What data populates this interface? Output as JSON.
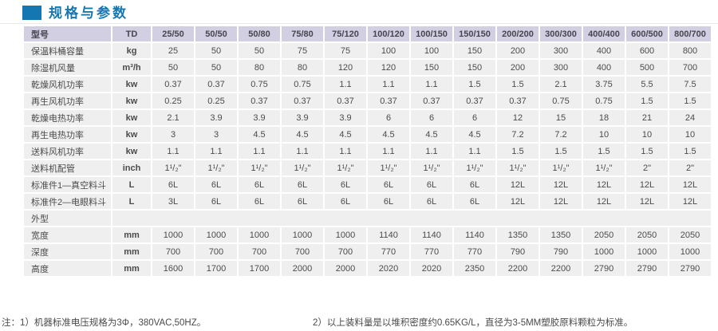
{
  "colors": {
    "accent": "#1577b2",
    "header_bg": "#d3cfe2",
    "cell_bg": "#efefef"
  },
  "header": {
    "title": "规格与参数"
  },
  "table": {
    "columns": [
      "型号",
      "TD",
      "25/50",
      "50/50",
      "50/80",
      "75/80",
      "75/120",
      "100/120",
      "100/150",
      "150/150",
      "200/200",
      "300/300",
      "400/400",
      "600/500",
      "800/700"
    ],
    "rows": [
      {
        "type": "data",
        "label": "保温料桶容量",
        "unit": "kg",
        "values": [
          "25",
          "50",
          "50",
          "75",
          "75",
          "100",
          "100",
          "150",
          "200",
          "300",
          "400",
          "600",
          "800"
        ]
      },
      {
        "type": "data",
        "label": "除湿机风量",
        "unit": "m³/h",
        "values": [
          "50",
          "50",
          "80",
          "80",
          "120",
          "120",
          "150",
          "150",
          "200",
          "300",
          "400",
          "500",
          "700"
        ]
      },
      {
        "type": "data",
        "label": "乾燥风机功率",
        "unit": "kw",
        "values": [
          "0.37",
          "0.37",
          "0.75",
          "0.75",
          "1.1",
          "1.1",
          "1.1",
          "1.5",
          "1.5",
          "2.1",
          "3.75",
          "5.5",
          "7.5"
        ]
      },
      {
        "type": "data",
        "label": "再生风机功率",
        "unit": "kw",
        "values": [
          "0.25",
          "0.25",
          "0.37",
          "0.37",
          "0.37",
          "0.37",
          "0.37",
          "0.37",
          "0.37",
          "0.75",
          "0.75",
          "1.5",
          "1.5"
        ]
      },
      {
        "type": "data",
        "label": "乾燥电热功率",
        "unit": "kw",
        "values": [
          "2.1",
          "3.9",
          "3.9",
          "3.9",
          "3.9",
          "6",
          "6",
          "6",
          "12",
          "15",
          "18",
          "21",
          "24"
        ]
      },
      {
        "type": "data",
        "label": "再生电热功率",
        "unit": "kw",
        "values": [
          "3",
          "3",
          "4.5",
          "4.5",
          "4.5",
          "4.5",
          "4.5",
          "4.5",
          "7.2",
          "7.2",
          "10",
          "10",
          "10"
        ]
      },
      {
        "type": "data",
        "label": "送料风机功率",
        "unit": "kw",
        "values": [
          "1.1",
          "1.1",
          "1.1",
          "1.1",
          "1.1",
          "1.1",
          "1.1",
          "1.1",
          "1.5",
          "1.5",
          "1.5",
          "1.5",
          "1.5"
        ]
      },
      {
        "type": "data",
        "label": "送料机配管",
        "unit": "inch",
        "values": [
          "1¹/₂\"",
          "1¹/₂\"",
          "1¹/₂\"",
          "1¹/₂\"",
          "1¹/₂\"",
          "1¹/₂\"",
          "1¹/₂\"",
          "1¹/₂\"",
          "1¹/₂\"",
          "1¹/₂\"",
          "1¹/₂\"",
          "2\"",
          "2\""
        ]
      },
      {
        "type": "data",
        "label": "标准件1—真空料斗",
        "unit": "L",
        "values": [
          "6L",
          "6L",
          "6L",
          "6L",
          "6L",
          "6L",
          "6L",
          "6L",
          "12L",
          "12L",
          "12L",
          "12L",
          "12L"
        ]
      },
      {
        "type": "data",
        "label": "标准件2—电眼料斗",
        "unit": "L",
        "values": [
          "3L",
          "6L",
          "6L",
          "6L",
          "6L",
          "6L",
          "6L",
          "6L",
          "12L",
          "12L",
          "12L",
          "12L",
          "12L"
        ]
      },
      {
        "type": "section",
        "label": "外型",
        "unit": "",
        "values": []
      },
      {
        "type": "data",
        "label": "宽度",
        "unit": "mm",
        "values": [
          "1000",
          "1000",
          "1000",
          "1000",
          "1000",
          "1140",
          "1140",
          "1140",
          "1350",
          "1350",
          "2050",
          "2050",
          "2050"
        ]
      },
      {
        "type": "data",
        "label": "深度",
        "unit": "mm",
        "values": [
          "700",
          "700",
          "700",
          "700",
          "700",
          "770",
          "770",
          "770",
          "790",
          "790",
          "1000",
          "1000",
          "1000"
        ]
      },
      {
        "type": "data",
        "label": "高度",
        "unit": "mm",
        "values": [
          "1600",
          "1700",
          "1700",
          "2000",
          "2000",
          "2020",
          "2020",
          "2350",
          "2200",
          "2200",
          "2790",
          "2790",
          "2790"
        ]
      }
    ]
  },
  "notes": {
    "note1": "注：1）机器标准电压规格为3Φ，380VAC,50HZ。",
    "note2": "2）以上装料量是以堆积密度约0.65KG/L，直径为3-5MM塑胶原料颗粒为标准。"
  }
}
